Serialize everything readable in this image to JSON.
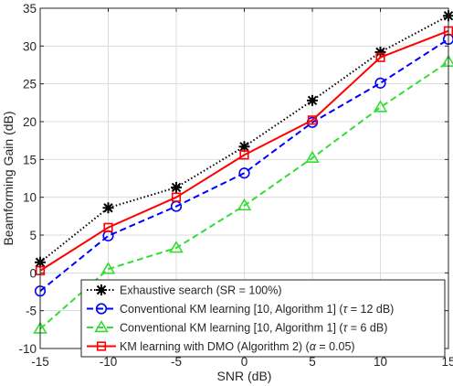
{
  "chart_data": {
    "type": "line",
    "xlabel": "SNR (dB)",
    "ylabel": "Beamforming Gain (dB)",
    "xlim": [
      -15,
      15
    ],
    "ylim": [
      -10,
      35
    ],
    "xticks": [
      -15,
      -10,
      -5,
      0,
      5,
      10,
      15
    ],
    "yticks": [
      -10,
      -5,
      0,
      5,
      10,
      15,
      20,
      25,
      30,
      35
    ],
    "grid": true,
    "legend_position": "bottom-right",
    "x": [
      -15,
      -10,
      -5,
      0,
      5,
      10,
      15
    ],
    "series": [
      {
        "id": "exhaustive",
        "name": "Exhaustive search (SR = 100%)",
        "legend_parts": [
          {
            "t": "Exhaustive search (SR = 100%)",
            "i": false
          }
        ],
        "color": "#000000",
        "dash": "dotted",
        "marker": "asterisk",
        "values": [
          1.4,
          8.6,
          11.3,
          16.7,
          22.8,
          29.2,
          34.0
        ]
      },
      {
        "id": "conv12",
        "name": "Conventional KM learning [10, Algorithm 1] (τ = 12 dB)",
        "legend_parts": [
          {
            "t": "Conventional KM learning [10, Algorithm 1] (",
            "i": false
          },
          {
            "t": "τ",
            "i": true
          },
          {
            "t": " = 12 dB)",
            "i": false
          }
        ],
        "color": "#0000ff",
        "dash": "dashed",
        "marker": "circle",
        "values": [
          -2.4,
          4.9,
          8.8,
          13.2,
          19.9,
          25.1,
          30.9
        ]
      },
      {
        "id": "conv6",
        "name": "Conventional KM learning [10, Algorithm 1] (τ = 6 dB)",
        "legend_parts": [
          {
            "t": "Conventional KM learning [10, Algorithm 1] (",
            "i": false
          },
          {
            "t": "τ",
            "i": true
          },
          {
            "t": " = 6 dB)",
            "i": false
          }
        ],
        "color": "#33dd33",
        "dash": "dashed",
        "marker": "triangle",
        "values": [
          -7.4,
          0.5,
          3.3,
          8.9,
          15.2,
          21.9,
          27.9
        ]
      },
      {
        "id": "dmo",
        "name": "KM learning with DMO (Algorithm 2) (α = 0.05)",
        "legend_parts": [
          {
            "t": "KM learning with DMO (Algorithm 2) (",
            "i": false
          },
          {
            "t": "α",
            "i": true
          },
          {
            "t": " = 0.05)",
            "i": false
          }
        ],
        "color": "#ff0000",
        "dash": "solid",
        "marker": "square",
        "values": [
          0.3,
          6.0,
          10.0,
          15.6,
          20.2,
          28.5,
          32.0
        ]
      }
    ]
  }
}
